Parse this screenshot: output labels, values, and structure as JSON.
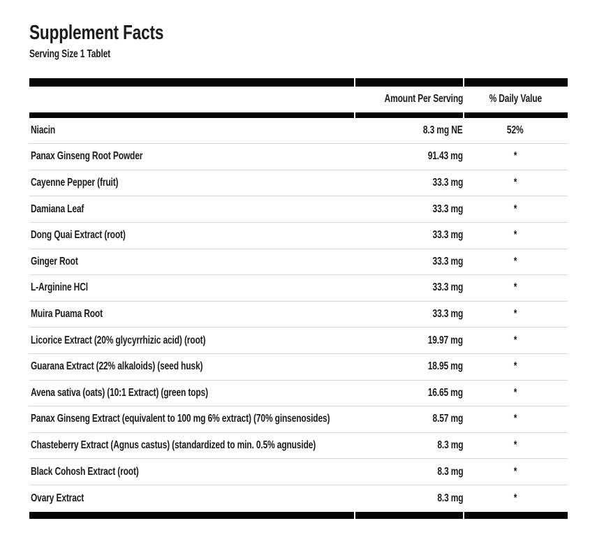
{
  "panel": {
    "title": "Supplement Facts",
    "serving_size": "Serving Size 1 Tablet"
  },
  "table": {
    "columns": {
      "amount": "Amount Per Serving",
      "daily_value": "% Daily Value"
    },
    "rows": [
      {
        "name": "Niacin",
        "amount": "8.3 mg NE",
        "dv": "52%"
      },
      {
        "name": "Panax Ginseng Root Powder",
        "amount": "91.43 mg",
        "dv": "*"
      },
      {
        "name": "Cayenne Pepper (fruit)",
        "amount": "33.3 mg",
        "dv": "*"
      },
      {
        "name": "Damiana Leaf",
        "amount": "33.3 mg",
        "dv": "*"
      },
      {
        "name": "Dong Quai Extract (root)",
        "amount": "33.3 mg",
        "dv": "*"
      },
      {
        "name": "Ginger Root",
        "amount": "33.3 mg",
        "dv": "*"
      },
      {
        "name": "L-Arginine HCl",
        "amount": "33.3 mg",
        "dv": "*"
      },
      {
        "name": "Muira Puama Root",
        "amount": "33.3 mg",
        "dv": "*"
      },
      {
        "name": "Licorice Extract (20% glycyrrhizic acid) (root)",
        "amount": "19.97 mg",
        "dv": "*"
      },
      {
        "name": "Guarana Extract (22% alkaloids) (seed husk)",
        "amount": "18.95 mg",
        "dv": "*"
      },
      {
        "name": "Avena sativa (oats) (10:1 Extract) (green tops)",
        "amount": "16.65 mg",
        "dv": "*"
      },
      {
        "name": "Panax Ginseng Extract (equivalent to 100 mg 6% extract) (70% ginsenosides)",
        "amount": "8.57 mg",
        "dv": "*"
      },
      {
        "name": "Chasteberry Extract (Agnus castus) (standardized to min. 0.5% agnuside)",
        "amount": "8.3 mg",
        "dv": "*"
      },
      {
        "name": "Black Cohosh Extract (root)",
        "amount": "8.3 mg",
        "dv": "*"
      },
      {
        "name": "Ovary Extract",
        "amount": "8.3 mg",
        "dv": "*"
      }
    ]
  },
  "colors": {
    "background": "#ffffff",
    "text": "#1c1c1c",
    "bar": "#060606",
    "row_separator": "#d8d8d8"
  }
}
